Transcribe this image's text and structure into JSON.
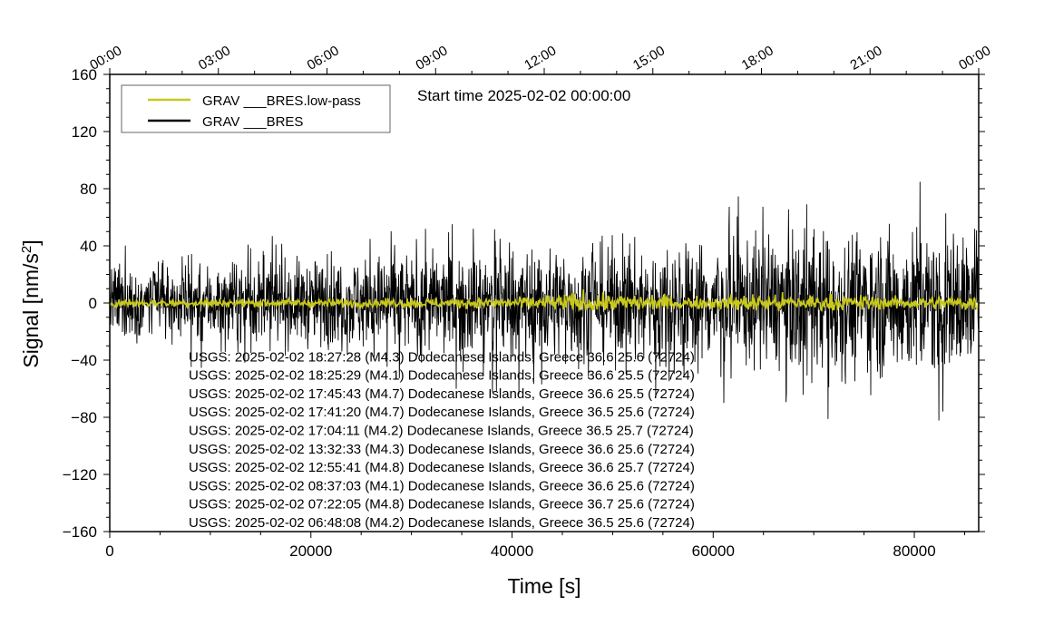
{
  "chart_data": {
    "type": "line",
    "title": "Start time 2025-02-02 00:00:00",
    "xlabel": "Time [s]",
    "ylabel_main": "Signal [nm/s",
    "ylabel_sup": "2",
    "ylabel_end": "]",
    "xlim": [
      0,
      86400
    ],
    "ylim": [
      -160,
      160
    ],
    "x_ticks": [
      0,
      20000,
      40000,
      60000,
      80000
    ],
    "x_tick_labels": [
      "0",
      "20000",
      "40000",
      "60000",
      "80000"
    ],
    "y_ticks": [
      -160,
      -120,
      -80,
      -40,
      0,
      40,
      80,
      120,
      160
    ],
    "y_tick_labels": [
      "−160",
      "−120",
      "−80",
      "−40",
      "0",
      "40",
      "80",
      "120",
      "160"
    ],
    "top_axis_ticks": [
      0,
      10800,
      21600,
      32400,
      43200,
      54000,
      64800,
      75600,
      86400
    ],
    "top_axis_labels": [
      "00:00",
      "03:00",
      "06:00",
      "09:00",
      "12:00",
      "15:00",
      "18:00",
      "21:00",
      "00:00"
    ],
    "grid": false,
    "legend_position": "top-left",
    "series": [
      {
        "name": "GRAV ___BRES",
        "color": "#000000",
        "envelope_x": [
          0,
          10000,
          20000,
          30000,
          40000,
          50000,
          60000,
          70000,
          80000,
          86400
        ],
        "envelope_upper": [
          30,
          32,
          35,
          42,
          45,
          48,
          52,
          58,
          62,
          62
        ],
        "envelope_lower": [
          -30,
          -32,
          -35,
          -40,
          -44,
          -46,
          -50,
          -55,
          -58,
          -58
        ]
      },
      {
        "name": "GRAV ___BRES.low-pass",
        "color": "#c8c81e",
        "envelope_x": [
          0,
          20000,
          40000,
          47500,
          60000,
          65000,
          80000,
          86400
        ],
        "envelope_upper": [
          3,
          3,
          4,
          10,
          5,
          8,
          5,
          7
        ],
        "envelope_lower": [
          -3,
          -3,
          -4,
          -5,
          -4,
          -6,
          -4,
          -5
        ]
      }
    ],
    "annotations": [
      "USGS: 2025-02-02 18:27:28 (M4.3) Dodecanese Islands, Greece 36.6 25.6 (72724)",
      "USGS: 2025-02-02 18:25:29 (M4.1) Dodecanese Islands, Greece 36.6 25.5 (72724)",
      "USGS: 2025-02-02 17:45:43 (M4.7) Dodecanese Islands, Greece 36.6 25.5 (72724)",
      "USGS: 2025-02-02 17:41:20 (M4.7) Dodecanese Islands, Greece 36.5 25.6 (72724)",
      "USGS: 2025-02-02 17:04:11 (M4.2) Dodecanese Islands, Greece 36.5 25.7 (72724)",
      "USGS: 2025-02-02 13:32:33 (M4.3) Dodecanese Islands, Greece 36.6 25.6 (72724)",
      "USGS: 2025-02-02 12:55:41 (M4.8) Dodecanese Islands, Greece 36.6 25.7 (72724)",
      "USGS: 2025-02-02 08:37:03 (M4.1) Dodecanese Islands, Greece 36.6 25.6 (72724)",
      "USGS: 2025-02-02 07:22:05 (M4.8) Dodecanese Islands, Greece 36.7 25.6 (72724)",
      "USGS: 2025-02-02 06:48:08 (M4.2) Dodecanese Islands, Greece 36.5 25.6 (72724)"
    ]
  }
}
